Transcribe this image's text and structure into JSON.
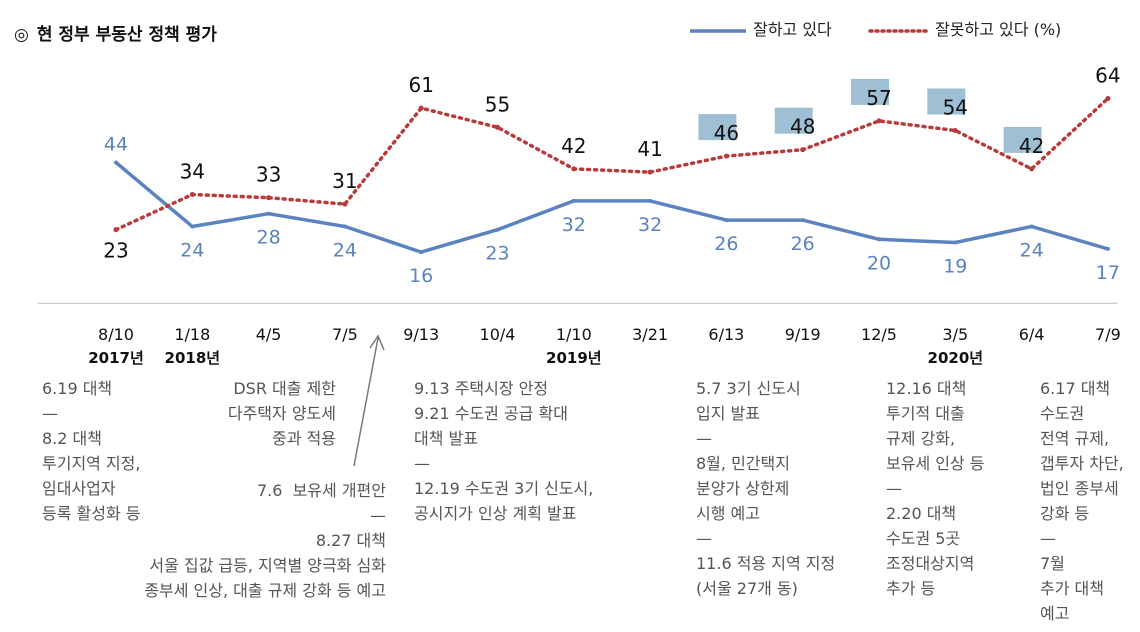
{
  "title_mark": "◎",
  "title": "현 정부 부동산 정책 평가",
  "chart_data": {
    "type": "line",
    "title": "현 정부 부동산 정책 평가",
    "categories": [
      "8/10",
      "1/18",
      "4/5",
      "7/5",
      "9/13",
      "10/4",
      "1/10",
      "3/21",
      "6/13",
      "9/19",
      "12/5",
      "3/5",
      "6/4",
      "7/9"
    ],
    "year_labels": [
      {
        "index": 0,
        "text": "2017년"
      },
      {
        "index": 1,
        "text": "2018년"
      },
      {
        "index": 6,
        "text": "2019년"
      },
      {
        "index": 11,
        "text": "2020년"
      }
    ],
    "series": [
      {
        "name": "잘하고 있다",
        "color": "#5b83bf",
        "style": "solid",
        "values": [
          44,
          24,
          28,
          24,
          16,
          23,
          32,
          32,
          26,
          26,
          20,
          19,
          24,
          17
        ]
      },
      {
        "name": "잘못하고 있다 (%)",
        "color": "#b83a3a",
        "style": "dotted",
        "values": [
          23,
          34,
          33,
          31,
          61,
          55,
          42,
          41,
          46,
          48,
          57,
          54,
          42,
          64
        ]
      }
    ],
    "ylim": [
      0,
      70
    ],
    "highlighted_labels": [
      8,
      9,
      10,
      11,
      12
    ],
    "grid": false,
    "legend_position": "top-right"
  },
  "annotations": [
    {
      "text": "6.19 대책\n—\n8.2 대책\n투기지역 지정,\n임대사업자\n등록 활성화 등"
    },
    {
      "text": "DSR 대출 제한\n다주택자 양도세\n중과 적용"
    },
    {
      "text": "7.6  보유세 개편안\n—\n8.27 대책\n서울 집값 급등, 지역별 양극화 심화\n종부세 인상, 대출 규제 강화 등 예고"
    },
    {
      "text": "9.13 주택시장 안정\n9.21 수도권 공급 확대\n대책 발표\n—\n12.19 수도권 3기 신도시,\n공시지가 인상 계획 발표"
    },
    {
      "text": "5.7 3기 신도시\n입지 발표\n—\n8월, 민간택지\n분양가 상한제\n시행 예고\n—\n11.6 적용 지역 지정\n(서울 27개 동)"
    },
    {
      "text": "12.16 대책\n투기적 대출\n규제 강화,\n보유세 인상 등\n—\n2.20 대책\n수도권 5곳\n조정대상지역\n추가 등"
    },
    {
      "text": "6.17 대책\n수도권\n전역 규제,\n갭투자 차단,\n법인 종부세\n강화 등\n—\n7월\n추가 대책\n예고"
    }
  ]
}
